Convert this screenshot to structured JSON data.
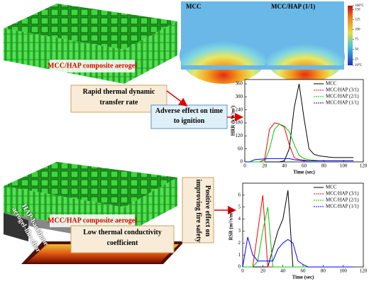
{
  "labels": {
    "aerogel_top": "MCC/HAP composite aerogel",
    "transfer": "Rapid thermal dynamic transfer rate",
    "adverse": "Adverse effect on time to ignition",
    "aerogel_bottom": "MCC/HAP composite aerogel",
    "conductivity": "Low thermal conductivity coefficient",
    "positive": "Positive effect on improving fire safety",
    "char": "HAP-backbone aerogel-like char"
  },
  "heatmap": {
    "panels": [
      "MCC",
      "MCC/HAP (1/1)"
    ],
    "lim": [
      10,
      160
    ],
    "ticks": [
      {
        "value": 160,
        "label": "160°C"
      },
      150,
      125,
      100,
      75,
      50,
      25,
      {
        "value": 10,
        "label": "10°C"
      }
    ]
  },
  "chart_data": [
    {
      "type": "line",
      "xlabel": "Time (sec)",
      "ylabel": "HRR (kW/m²)",
      "x": [
        0,
        5,
        10,
        15,
        20,
        25,
        30,
        35,
        40,
        45,
        50,
        55,
        60,
        65,
        70,
        75,
        80,
        85,
        90,
        95,
        100,
        105,
        110
      ],
      "xlim": [
        0,
        120
      ],
      "xticks": [
        0,
        20,
        40,
        60,
        80,
        100,
        120
      ],
      "ylim": [
        0,
        380
      ],
      "yticks": [
        0,
        60,
        120,
        180,
        240,
        300,
        360
      ],
      "series": [
        {
          "name": "MCC",
          "color": "#000000",
          "values": [
            0,
            0,
            0,
            0,
            0,
            0,
            0,
            0,
            5,
            60,
            250,
            360,
            200,
            60,
            35,
            28,
            25,
            22,
            20,
            20,
            20,
            20,
            20
          ]
        },
        {
          "name": "MCC/HAP (3/1)",
          "color": "#ff0000",
          "values": [
            0,
            0,
            0,
            0,
            10,
            150,
            180,
            175,
            160,
            80,
            20,
            10,
            8,
            5,
            5,
            5,
            5,
            5,
            5,
            5,
            5,
            5,
            5
          ]
        },
        {
          "name": "MCC/HAP (2/1)",
          "color": "#00cc00",
          "values": [
            0,
            0,
            0,
            0,
            0,
            60,
            150,
            175,
            165,
            140,
            80,
            30,
            15,
            10,
            8,
            6,
            5,
            5,
            5,
            5,
            5,
            5,
            5
          ]
        },
        {
          "name": "MCC/HAP (1/1)",
          "color": "#0000ff",
          "values": [
            0,
            0,
            10,
            12,
            14,
            15,
            15,
            15,
            15,
            15,
            10,
            8,
            5,
            5,
            5,
            5,
            5,
            5,
            5,
            5,
            5,
            5,
            5
          ]
        }
      ]
    },
    {
      "type": "line",
      "xlabel": "Time (sec)",
      "ylabel": "RSR (m²/s/m²)",
      "x": [
        0,
        5,
        10,
        15,
        20,
        25,
        30,
        35,
        40,
        45,
        50,
        55,
        60,
        65,
        70,
        75,
        80,
        85,
        90,
        95,
        100,
        105,
        110
      ],
      "xlim": [
        0,
        120
      ],
      "xticks": [
        0,
        20,
        40,
        60,
        80,
        100,
        120
      ],
      "ylim": [
        0,
        7
      ],
      "yticks": [
        0,
        1,
        2,
        3,
        4,
        5,
        6
      ],
      "series": [
        {
          "name": "MCC",
          "color": "#000000",
          "values": [
            0,
            0,
            0,
            0,
            0,
            0,
            1.5,
            3,
            4,
            6.4,
            0,
            0,
            0,
            0,
            0,
            0,
            0,
            0,
            0,
            0,
            0,
            0,
            0
          ]
        },
        {
          "name": "MCC/HAP (3/1)",
          "color": "#ff0000",
          "values": [
            0,
            0,
            0,
            3,
            6,
            0,
            0,
            0,
            0,
            0,
            0,
            0,
            0,
            0,
            0,
            0,
            0,
            0,
            0,
            0,
            0,
            0,
            0
          ]
        },
        {
          "name": "MCC/HAP (2/1)",
          "color": "#00cc00",
          "values": [
            0,
            0,
            0,
            0.5,
            3,
            5,
            0,
            0,
            0,
            0,
            0,
            0,
            0,
            0,
            0,
            0,
            0,
            0,
            0,
            0,
            0,
            0,
            0
          ]
        },
        {
          "name": "MCC/HAP (1/1)",
          "color": "#0000ff",
          "values": [
            0,
            2.5,
            1,
            0.5,
            0.5,
            0.5,
            0.5,
            1.5,
            2,
            2.3,
            2,
            0.5,
            0.2,
            0,
            0,
            0,
            0,
            0,
            0,
            0,
            0,
            0,
            0
          ]
        }
      ]
    }
  ]
}
